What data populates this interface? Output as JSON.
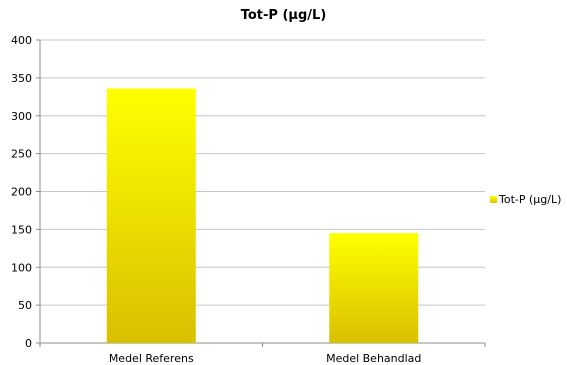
{
  "chart_data": {
    "type": "bar",
    "title": "Tot-P (µg/L)",
    "categories": [
      "Medel Referens",
      "Medel Behandlad"
    ],
    "series": [
      {
        "name": "Tot-P (µg/L)",
        "values": [
          336,
          145
        ]
      }
    ],
    "xlabel": "",
    "ylabel": "",
    "ylim": [
      0,
      400
    ],
    "yticks": [
      0,
      50,
      100,
      150,
      200,
      250,
      300,
      350,
      400
    ],
    "grid": true,
    "legend": "right",
    "colors": {
      "bar_top": "#ffff00",
      "bar_bottom": "#d9c000",
      "grid": "#c6c6c6",
      "axis": "#8c8c8c"
    }
  }
}
